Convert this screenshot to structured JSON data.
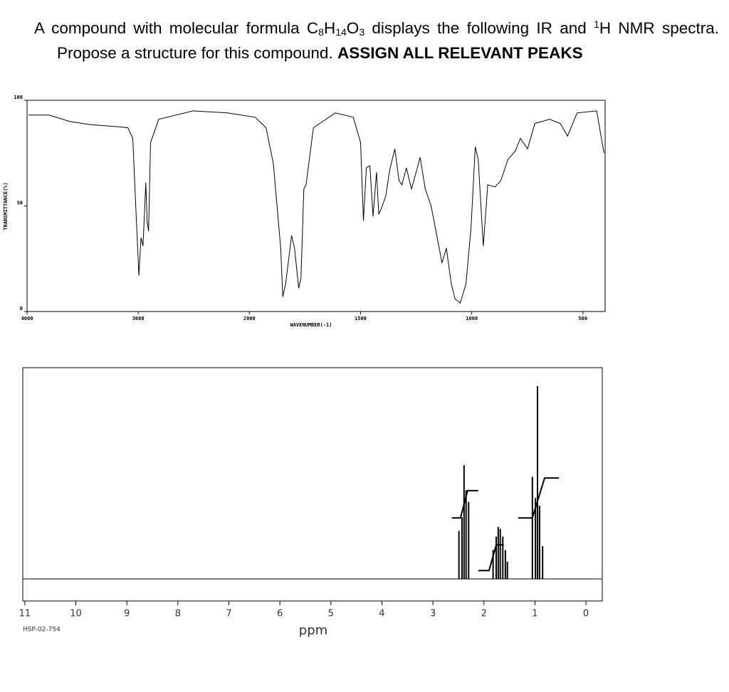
{
  "question": {
    "parts": [
      "A compound with molecular formula C",
      "8",
      "H",
      "14",
      "O",
      "3",
      " displays the following IR and ",
      "1",
      "H NMR spectra. Propose a structure for this compound. ",
      "ASSIGN ALL RELEVANT PEAKS"
    ]
  },
  "chart_data": [
    {
      "type": "line",
      "color": "#000000",
      "xlabel": "WAVENUMBER(-1)",
      "ylabel": "TRANSMITTANCE(%)",
      "xlim": [
        4000,
        400
      ],
      "ylim": [
        0,
        100
      ],
      "xticks": [
        4000,
        3000,
        2000,
        1500,
        1000,
        500
      ],
      "yticks": [
        0,
        50,
        100
      ],
      "x": [
        3988,
        3802,
        3617,
        3432,
        3185,
        3093,
        3049,
        3019,
        2994,
        2975,
        2957,
        2932,
        2920,
        2907,
        2889,
        2815,
        2506,
        2198,
        1974,
        1925,
        1892,
        1859,
        1850,
        1837,
        1810,
        1797,
        1778,
        1768,
        1755,
        1745,
        1712,
        1614,
        1533,
        1500,
        1487,
        1474,
        1458,
        1444,
        1428,
        1418,
        1402,
        1386,
        1369,
        1346,
        1327,
        1314,
        1294,
        1271,
        1232,
        1209,
        1183,
        1157,
        1134,
        1114,
        1092,
        1075,
        1052,
        1026,
        1003,
        984,
        971,
        948,
        928,
        895,
        869,
        837,
        804,
        781,
        749,
        716,
        650,
        601,
        569,
        526,
        438,
        405
      ],
      "values": [
        93,
        93,
        90,
        88.5,
        87.5,
        87,
        82,
        46,
        17,
        35,
        31,
        61,
        43,
        38,
        80,
        91,
        95,
        94,
        92,
        87,
        70,
        30,
        7,
        13,
        36,
        30,
        11,
        16,
        58,
        60,
        87,
        94,
        92,
        80,
        43,
        68,
        69,
        45,
        66,
        46,
        50,
        55,
        67,
        77,
        62,
        60,
        68,
        58,
        73,
        58,
        50,
        36,
        23,
        30,
        13,
        6,
        4,
        13,
        40,
        78,
        72,
        31,
        60,
        59,
        62,
        72,
        76,
        82,
        77,
        89,
        91,
        89,
        83,
        94,
        95,
        75
      ]
    },
    {
      "type": "stem",
      "color": "#000000",
      "xlabel": "ppm",
      "note": "HSP-02-754",
      "xlim": [
        11.04,
        -0.32
      ],
      "ylim": [
        -11.4,
        109.6
      ],
      "xticks": [
        11,
        10,
        9,
        8,
        7,
        6,
        5,
        4,
        3,
        2,
        1,
        0
      ],
      "x": [
        2.49,
        2.43,
        2.39,
        2.35,
        2.3,
        1.82,
        1.76,
        1.72,
        1.68,
        1.63,
        1.58,
        1.54,
        1.05,
        0.99,
        0.95,
        0.91,
        0.85
      ],
      "values": [
        25,
        32,
        59,
        46,
        40,
        15,
        22,
        27,
        26,
        22,
        15,
        9,
        53,
        42,
        100,
        38,
        17
      ],
      "integrals": [
        {
          "x": [
            2.63,
            2.46,
            2.32,
            2.11
          ],
          "y": [
            31.7,
            31.7,
            45.8,
            45.8
          ]
        },
        {
          "x": [
            2.11,
            1.9,
            1.76,
            1.61
          ],
          "y": [
            4.4,
            4.4,
            17.7,
            17.7
          ]
        },
        {
          "x": [
            1.33,
            1.05,
            0.81,
            0.53
          ],
          "y": [
            31.7,
            31.7,
            52.4,
            52.4
          ]
        }
      ]
    }
  ]
}
